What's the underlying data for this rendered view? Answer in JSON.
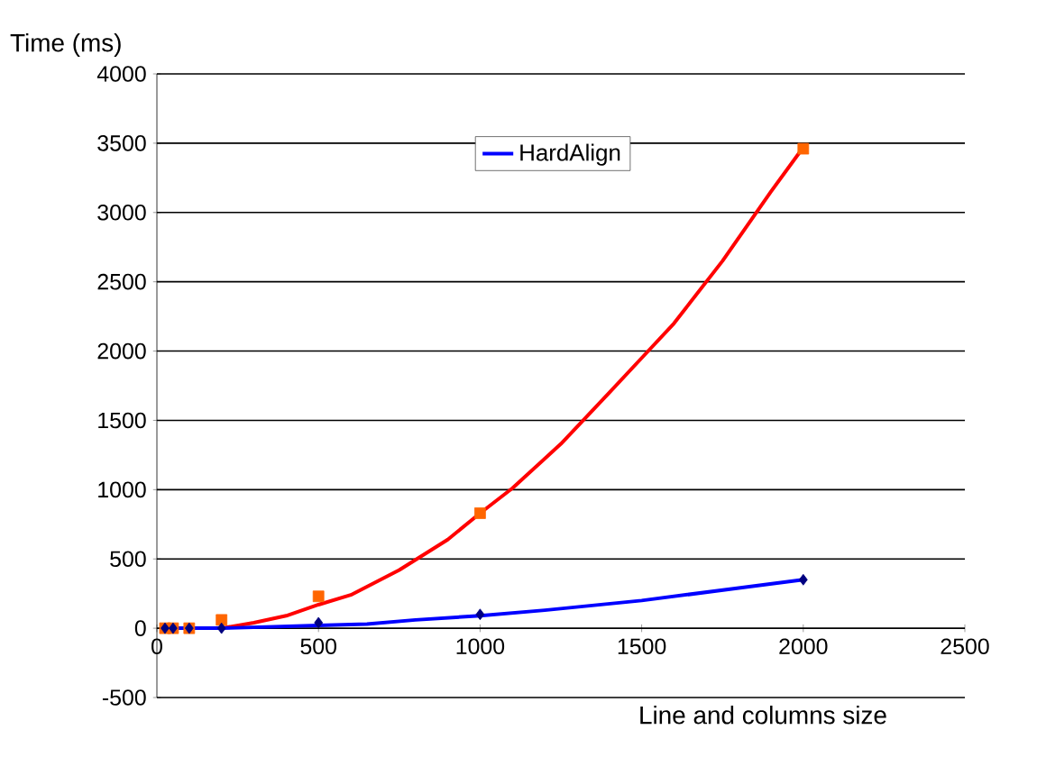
{
  "chart_data": {
    "type": "line",
    "xlabel": "Line and columns size",
    "ylabel": "Time (ms)",
    "xlim": [
      0,
      2500
    ],
    "xticks": [
      0,
      500,
      1000,
      1500,
      2000,
      2500
    ],
    "ylim": [
      -500,
      4000
    ],
    "yticks": [
      -500,
      0,
      500,
      1000,
      1500,
      2000,
      2500,
      3000,
      3500,
      4000
    ],
    "grid": "y",
    "legend": "top",
    "series": [
      {
        "type": "scatter",
        "marker": "square",
        "color": "#ff6600",
        "x": [
          25,
          50,
          100,
          200,
          500,
          1000,
          2000
        ],
        "values": [
          0,
          0,
          0,
          60,
          230,
          830,
          3460
        ]
      },
      {
        "type": "scatter",
        "marker": "diamond",
        "color": "#000080",
        "x": [
          25,
          50,
          100,
          200,
          500,
          1000,
          2000
        ],
        "values": [
          0,
          0,
          0,
          0,
          40,
          100,
          350
        ]
      },
      {
        "color": "#ff0000",
        "x": [
          25,
          100,
          200,
          300,
          400,
          500,
          600,
          750,
          900,
          1000,
          1100,
          1250,
          1400,
          1500,
          1600,
          1750,
          1900,
          2000
        ],
        "values": [
          0,
          0,
          0,
          40,
          90,
          170,
          240,
          420,
          640,
          830,
          1010,
          1330,
          1700,
          1950,
          2200,
          2650,
          3150,
          3470
        ]
      },
      {
        "name": "HardAlign",
        "color": "#0000ff",
        "x": [
          25,
          200,
          500,
          650,
          800,
          1000,
          1200,
          1500,
          1800,
          2000
        ],
        "values": [
          0,
          0,
          20,
          30,
          60,
          90,
          130,
          200,
          290,
          350
        ]
      }
    ]
  }
}
